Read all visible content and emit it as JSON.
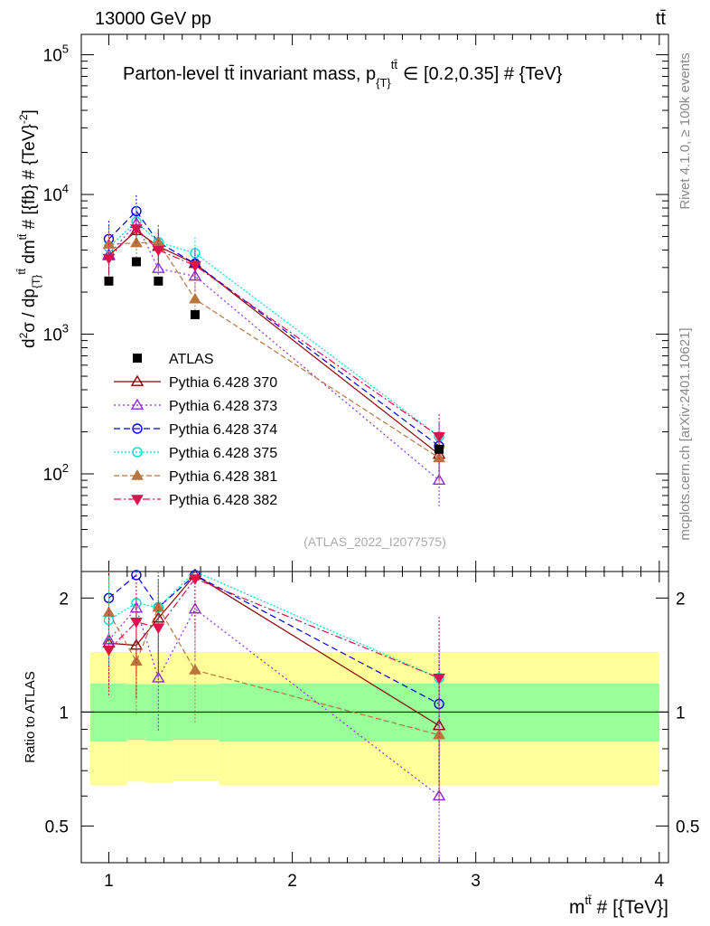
{
  "header": {
    "energy_label": "13000 GeV pp",
    "process_label": "tt̄"
  },
  "side_labels": {
    "rivet": "Rivet 4.1.0, ≥ 100k events",
    "mcplots": "mcplots.cern.ch [arXiv:2401.10621]"
  },
  "chart_data": {
    "type": "scatter",
    "title": "Parton-level tt̄ invariant mass, p_{T}^{tt̄} ∈ [0.2,0.35] # {TeV}",
    "title_main": "Parton-level tt̄ invariant mass, p",
    "title_sub": "{T}",
    "title_sup": "tt̄",
    "title_tail": "∈ [0.2,0.35] # {TeV}",
    "watermark": "(ATLAS_2022_I2077575)",
    "ylabel": "d²σ / dp_{T}^{tt̄} dm^{tt̄} # [{fb} # {TeV}⁻²]",
    "ylabel_parts": [
      "d",
      "2",
      "σ / dp",
      "{T}",
      "tt̄",
      " dm",
      "tt̄",
      " # [{fb} # {TeV}",
      "-2",
      "]"
    ],
    "xlabel": "m^{tt̄} # [{TeV}]",
    "xlabel_parts": [
      "m",
      "tt̄",
      " # [{TeV}]"
    ],
    "ratio_ylabel": "Ratio to ATLAS",
    "xlim": [
      0.85,
      4.05
    ],
    "ylim": [
      20,
      140000
    ],
    "ratio_ylim": [
      0.4,
      2.35
    ],
    "x_ticks": [
      1,
      2,
      3,
      4
    ],
    "x_tick_labels": [
      "1",
      "2",
      "3",
      "4"
    ],
    "y_ticks": [
      100,
      1000,
      10000,
      100000
    ],
    "y_tick_labels": [
      {
        "base": "10",
        "exp": "2"
      },
      {
        "base": "10",
        "exp": "3"
      },
      {
        "base": "10",
        "exp": "4"
      },
      {
        "base": "10",
        "exp": "5"
      }
    ],
    "ratio_ticks": [
      0.5,
      1,
      2
    ],
    "ratio_tick_labels": [
      "0.5",
      "1",
      "2"
    ],
    "data": {
      "name": "ATLAS",
      "x": [
        1.0,
        1.15,
        1.27,
        1.47,
        2.8
      ],
      "y": [
        2400,
        3300,
        2400,
        1380,
        150
      ],
      "yerr_rel": [
        0.08,
        0.08,
        0.08,
        0.1,
        0.12
      ]
    },
    "bands": [
      {
        "x0": 0.9,
        "x1": 1.1,
        "green": [
          0.835,
          1.19
        ],
        "yellow": [
          0.64,
          1.44
        ]
      },
      {
        "x0": 1.1,
        "x1": 1.2,
        "green": [
          0.845,
          1.185
        ],
        "yellow": [
          0.655,
          1.44
        ]
      },
      {
        "x0": 1.2,
        "x1": 1.35,
        "green": [
          0.84,
          1.185
        ],
        "yellow": [
          0.65,
          1.44
        ]
      },
      {
        "x0": 1.35,
        "x1": 1.6,
        "green": [
          0.845,
          1.185
        ],
        "yellow": [
          0.66,
          1.44
        ]
      },
      {
        "x0": 1.6,
        "x1": 4.0,
        "green": [
          0.835,
          1.19
        ],
        "yellow": [
          0.64,
          1.44
        ]
      }
    ],
    "series": [
      {
        "name": "Pythia 6.428 370",
        "color": "#8b0000",
        "marker": "triangle-up-open",
        "dash": "",
        "y": [
          3650,
          5500,
          4250,
          3200,
          138
        ],
        "ratio": [
          1.52,
          1.5,
          1.77,
          2.3,
          0.92
        ]
      },
      {
        "name": "Pythia 6.428 373",
        "color": "#8a2be2",
        "marker": "triangle-up-open",
        "dash": "2,3",
        "y": [
          3700,
          6200,
          2950,
          2600,
          90
        ],
        "ratio": [
          1.55,
          1.88,
          1.23,
          1.87,
          0.6
        ]
      },
      {
        "name": "Pythia 6.428 374",
        "color": "#0000dd",
        "marker": "circle-open",
        "dash": "7,4",
        "y": [
          4800,
          7600,
          4550,
          3200,
          158
        ],
        "ratio": [
          2.0,
          2.3,
          1.89,
          2.3,
          1.05
        ]
      },
      {
        "name": "Pythia 6.428 375",
        "color": "#00ddcc",
        "marker": "circle-open",
        "dash": "2,2",
        "y": [
          4200,
          6400,
          4550,
          3800,
          185
        ],
        "ratio": [
          1.75,
          1.94,
          1.89,
          2.75,
          1.23
        ]
      },
      {
        "name": "Pythia 6.428 381",
        "color": "#b8763e",
        "marker": "triangle-up-filled",
        "dash": "6,3",
        "y": [
          4400,
          4500,
          4550,
          1780,
          130
        ],
        "ratio": [
          1.83,
          1.36,
          1.89,
          1.29,
          0.87
        ]
      },
      {
        "name": "Pythia 6.428 382",
        "color": "#e0104e",
        "marker": "triangle-down-filled",
        "dash": "8,3,2,3",
        "y": [
          3500,
          5700,
          4000,
          3100,
          185
        ],
        "ratio": [
          1.46,
          1.73,
          1.67,
          2.25,
          1.23
        ]
      }
    ]
  }
}
